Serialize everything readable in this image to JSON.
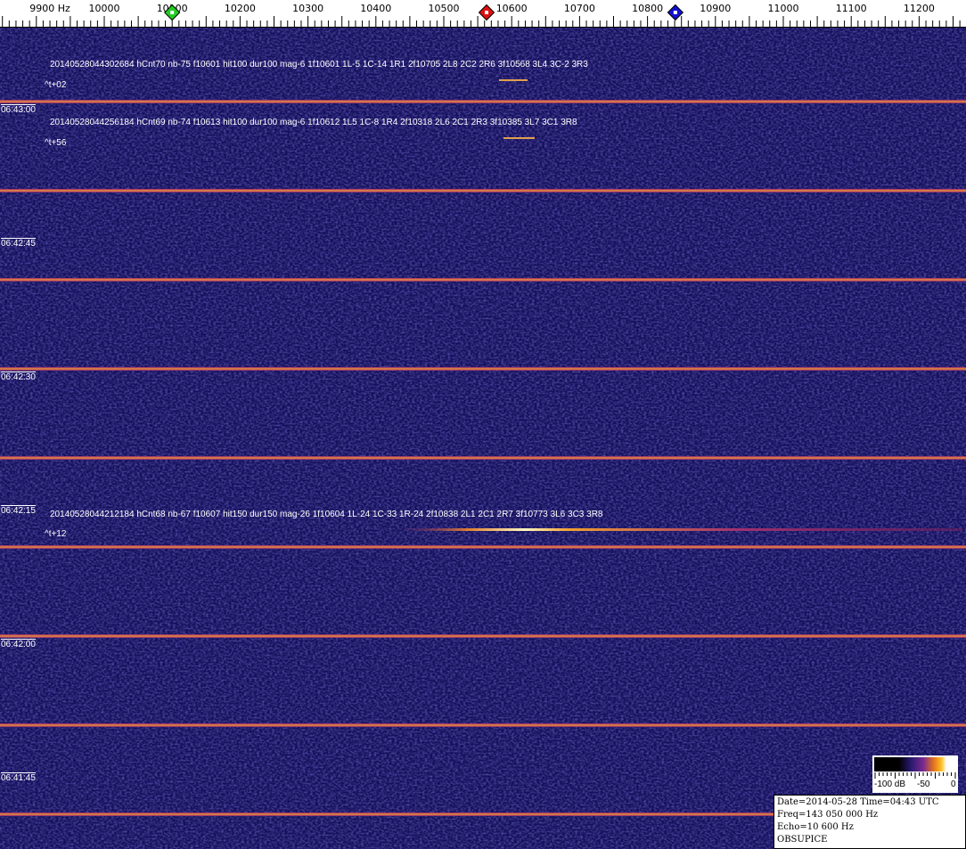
{
  "axis": {
    "unit_label": "9900 Hz",
    "labels": [
      "10000",
      "10100",
      "10200",
      "10300",
      "10400",
      "10500",
      "10600",
      "10700",
      "10800",
      "10900",
      "11000",
      "11100",
      "11200"
    ],
    "start_hz": 9900,
    "markers": [
      {
        "name": "green-marker",
        "hz": 10100,
        "color": "#22cc22"
      },
      {
        "name": "red-marker",
        "hz": 10563,
        "color": "#dd1111"
      },
      {
        "name": "blue-marker",
        "hz": 10841,
        "color": "#1111cc"
      }
    ]
  },
  "waterfall": {
    "time_labels": [
      "06:43:00",
      "06:42:45",
      "06:42:30",
      "06:42:15",
      "06:42:00",
      "06:41:45"
    ],
    "detections": [
      {
        "text": "20140528044302684 hCnt70 nb-75 f10601 hit100 dur100 mag-6 1f10601 1L-5 1C-14 1R1 2f10705 2L8 2C2 2R6 3f10568 3L4 3C-2 3R3",
        "dt": "^t+02"
      },
      {
        "text": "20140528044256184 hCnt69 nb-74 f10613 hit100 dur100 mag-6 1f10612 1L5 1C-8 1R4 2f10318 2L6 2C1 2R3 3f10385 3L7 3C1 3R8",
        "dt": "^t+56"
      },
      {
        "text": "20140528044212184 hCnt68 nb-67 f10607 hit150 dur150 mag-26 1f10604 1L-24 1C-33 1R-24 2f10838 2L1 2C1 2R7 3f10773 3L6 3C3 3R8",
        "dt": "^t+12"
      }
    ],
    "background_color": "#1a1666"
  },
  "colorbar": {
    "labels": [
      "-100 dB",
      "-50",
      "0"
    ]
  },
  "info": {
    "date_line": "Date=2014-05-28 Time=04:43 UTC",
    "freq_line": "Freq=143 050 000 Hz",
    "echo_line": "Echo=10 600 Hz",
    "station": "OBSUPICE"
  }
}
